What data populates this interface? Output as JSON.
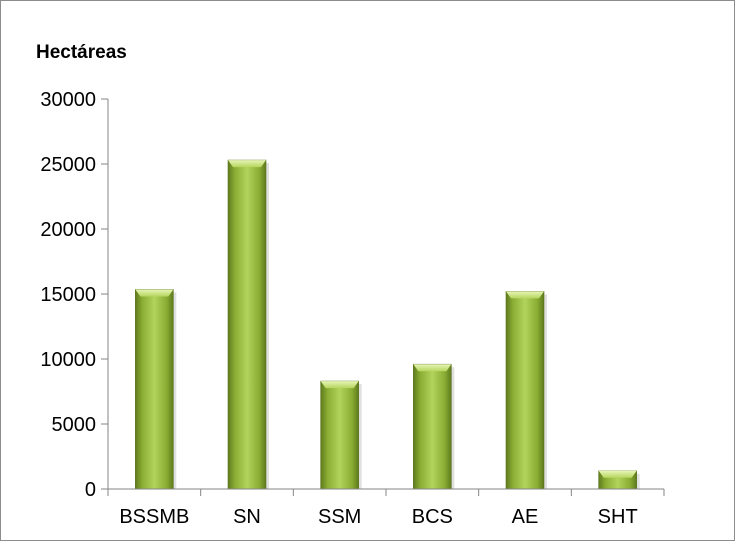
{
  "chart_data": {
    "type": "bar",
    "title": "",
    "xlabel": "",
    "ylabel": "Hectáreas",
    "categories": [
      "BSSMB",
      "SN",
      "SSM",
      "BCS",
      "AE",
      "SHT"
    ],
    "values": [
      15350,
      25300,
      8300,
      9600,
      15200,
      1400
    ],
    "ylim": [
      0,
      30000
    ],
    "yticks": [
      0,
      5000,
      10000,
      15000,
      20000,
      25000,
      30000
    ],
    "ytick_labels": [
      "0",
      "5000",
      "10000",
      "15000",
      "20000",
      "25000",
      "30000"
    ],
    "grid": false,
    "legend": "none",
    "bar_color": "#9bbb3c"
  }
}
